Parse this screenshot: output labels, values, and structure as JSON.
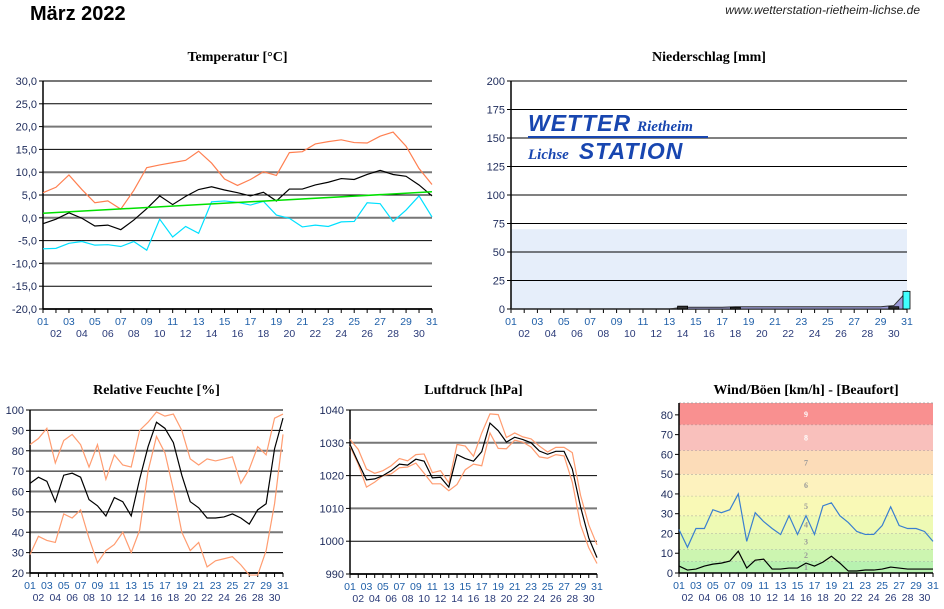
{
  "header": {
    "title": "März 2022",
    "url": "www.wetterstation-rietheim-lichse.de"
  },
  "logo": {
    "word1": "WETTER",
    "word2": "Rietheim",
    "word3": "Lichse",
    "word4": "STATION"
  },
  "colors": {
    "max": "#ff7f50",
    "min": "#00e0ff",
    "mean": "#000000",
    "trend": "#00e000",
    "gust": "#3a7fd0",
    "hum_range": "#ff9c70",
    "precip_area": "#9a9ad8",
    "precip_bar": "#40ffff"
  },
  "chart_data": [
    {
      "id": "temp",
      "type": "line",
      "title": "Temperatur [°C]",
      "ylim": [
        -20,
        30
      ],
      "yticks": [
        "-20,0",
        "-15,0",
        "-10,0",
        "-5,0",
        "0,0",
        "5,0",
        "10,0",
        "15,0",
        "20,0",
        "25,0",
        "30,0"
      ],
      "ytick_values": [
        -20,
        -15,
        -10,
        -5,
        0,
        5,
        10,
        15,
        20,
        25,
        30
      ],
      "series": [
        {
          "name": "max",
          "color": "#ff7f50",
          "values": [
            5.5,
            6.7,
            9.4,
            6.2,
            3.3,
            3.7,
            1.9,
            6.0,
            11.0,
            11.6,
            12.1,
            12.6,
            14.6,
            12.0,
            8.5,
            7.1,
            8.4,
            10.1,
            9.3,
            14.3,
            14.5,
            16.2,
            16.7,
            17.1,
            16.5,
            16.4,
            17.9,
            18.8,
            15.7,
            10.8,
            7.3
          ]
        },
        {
          "name": "mean",
          "color": "#000000",
          "values": [
            -1.3,
            -0.3,
            1.1,
            -0.1,
            -1.8,
            -1.6,
            -2.6,
            -0.5,
            2.0,
            4.8,
            2.9,
            4.7,
            6.2,
            6.8,
            6.1,
            5.5,
            4.8,
            5.6,
            3.7,
            6.3,
            6.3,
            7.2,
            7.8,
            8.6,
            8.4,
            9.5,
            10.4,
            9.5,
            9.1,
            7.2,
            4.8
          ]
        },
        {
          "name": "min",
          "color": "#00e0ff",
          "values": [
            -6.8,
            -6.7,
            -5.6,
            -5.2,
            -6.0,
            -5.9,
            -6.3,
            -5.2,
            -7.1,
            -0.3,
            -4.2,
            -1.9,
            -3.4,
            3.5,
            3.7,
            3.4,
            2.8,
            3.6,
            0.6,
            -0.1,
            -2.0,
            -1.6,
            -1.9,
            -0.9,
            -0.8,
            3.3,
            3.1,
            -0.8,
            1.7,
            4.8,
            0.2
          ]
        },
        {
          "name": "trend",
          "color": "#00e000",
          "values": [
            1.0,
            5.7
          ],
          "linear": true
        }
      ]
    },
    {
      "id": "precip",
      "type": "area",
      "title": "Niederschlag [mm]",
      "ylim": [
        0,
        200
      ],
      "yticks": [
        "0",
        "25",
        "50",
        "75",
        "100",
        "125",
        "150",
        "175",
        "200"
      ],
      "ytick_values": [
        0,
        25,
        50,
        75,
        100,
        125,
        150,
        175,
        200
      ],
      "normal_band": 70,
      "daily": [
        0,
        0,
        0,
        0,
        0,
        0,
        0,
        0,
        0,
        0,
        0,
        0,
        0,
        1.5,
        0,
        0,
        0,
        0.5,
        0,
        0,
        0,
        0,
        0,
        0,
        0,
        0,
        0,
        0,
        0,
        1,
        12.5
      ],
      "cumulative": [
        0,
        0,
        0,
        0,
        0,
        0,
        0,
        0,
        0,
        0,
        0,
        0,
        0,
        1.5,
        1.5,
        1.5,
        1.5,
        2,
        2,
        2,
        2,
        2,
        2,
        2,
        2,
        2,
        2,
        2,
        2,
        3,
        15.5
      ]
    },
    {
      "id": "hum",
      "type": "line",
      "title": "Relative Feuchte [%]",
      "ylim": [
        20,
        100
      ],
      "yticks": [
        "20",
        "30",
        "40",
        "50",
        "60",
        "70",
        "80",
        "90",
        "100"
      ],
      "ytick_values": [
        20,
        30,
        40,
        50,
        60,
        70,
        80,
        90,
        100
      ],
      "series": [
        {
          "name": "max",
          "color": "#ff9c70",
          "values": [
            83,
            86,
            91,
            74,
            85,
            88,
            83,
            72,
            83,
            66,
            78,
            73,
            72,
            90,
            94,
            99,
            97,
            98,
            90,
            76,
            73,
            76,
            75,
            76,
            77,
            64,
            71,
            82,
            78,
            96,
            98
          ]
        },
        {
          "name": "min",
          "color": "#ff9c70",
          "values": [
            29,
            38,
            36,
            35,
            49,
            47,
            51,
            37,
            25,
            31,
            34,
            40,
            30,
            41,
            70,
            87,
            79,
            61,
            40,
            31,
            35,
            23,
            26,
            27,
            28,
            24,
            19,
            19,
            31,
            54,
            88
          ]
        },
        {
          "name": "mean",
          "color": "#000000",
          "values": [
            64,
            67,
            65,
            55,
            68,
            69,
            67,
            56,
            53,
            48,
            57,
            55,
            48,
            66,
            82,
            94,
            91,
            84,
            68,
            55,
            52,
            47,
            47,
            47.5,
            49,
            47,
            44,
            51,
            54,
            81,
            96
          ]
        }
      ]
    },
    {
      "id": "press",
      "type": "line",
      "title": "Luftdruck [hPa]",
      "ylim": [
        990,
        1040
      ],
      "yticks": [
        "990",
        "1000",
        "1010",
        "1020",
        "1030",
        "1040"
      ],
      "ytick_values": [
        990,
        1000,
        1010,
        1020,
        1030,
        1040
      ],
      "series": [
        {
          "name": "max",
          "color": "#ff9c70",
          "values": [
            1031,
            1028,
            1022,
            1020.7,
            1021.5,
            1023,
            1025.2,
            1024.5,
            1026.4,
            1026.6,
            1020.9,
            1021.5,
            1017.8,
            1029.5,
            1029,
            1025.9,
            1033,
            1038.8,
            1038.6,
            1031.6,
            1033,
            1031.8,
            1031.2,
            1029,
            1027.2,
            1028.6,
            1028.6,
            1027,
            1014,
            1005,
            998.9
          ]
        },
        {
          "name": "min",
          "color": "#ff9c70",
          "values": [
            1029,
            1023.5,
            1016.5,
            1018,
            1020,
            1020.5,
            1022.4,
            1022.6,
            1023.8,
            1020.7,
            1017.5,
            1017.5,
            1015.4,
            1017.3,
            1021.8,
            1023.5,
            1023,
            1033,
            1028.3,
            1028.2,
            1030.8,
            1030.2,
            1028.7,
            1025.7,
            1025.3,
            1026.4,
            1026,
            1018,
            1005,
            998,
            993.2
          ]
        },
        {
          "name": "mean",
          "color": "#000000",
          "values": [
            1029.5,
            1024,
            1018.7,
            1019,
            1020,
            1021.5,
            1023.5,
            1023.2,
            1025,
            1024.4,
            1019.3,
            1019.5,
            1016.5,
            1026.4,
            1025.2,
            1024.4,
            1027.3,
            1036,
            1033.7,
            1030.2,
            1031.7,
            1031,
            1030,
            1027.5,
            1026.5,
            1027.4,
            1027.4,
            1022,
            1010.5,
            1001,
            995
          ]
        }
      ]
    },
    {
      "id": "wind",
      "type": "line",
      "title": "Wind/Böen [km/h] - [Beaufort]",
      "ylim": [
        0,
        86
      ],
      "yticks": [
        "0",
        "10",
        "20",
        "30",
        "40",
        "50",
        "60",
        "70",
        "80"
      ],
      "ytick_values": [
        0,
        10,
        20,
        30,
        40,
        50,
        60,
        70,
        80
      ],
      "beaufort_bands": [
        {
          "label": "1",
          "from": 0,
          "to": 6,
          "color": "#b8f2b0"
        },
        {
          "label": "2",
          "from": 6,
          "to": 12,
          "color": "#ccf5b0"
        },
        {
          "label": "3",
          "from": 12,
          "to": 20,
          "color": "#e0f8b2"
        },
        {
          "label": "4",
          "from": 20,
          "to": 29,
          "color": "#eefab4"
        },
        {
          "label": "5",
          "from": 29,
          "to": 39,
          "color": "#f9f9b6"
        },
        {
          "label": "6",
          "from": 39,
          "to": 50,
          "color": "#fdf2be"
        },
        {
          "label": "7",
          "from": 50,
          "to": 62,
          "color": "#fcdcb8"
        },
        {
          "label": "8",
          "from": 62,
          "to": 75,
          "color": "#f9c0bc"
        },
        {
          "label": "9",
          "from": 75,
          "to": 86,
          "color": "#f99090"
        }
      ],
      "series": [
        {
          "name": "gust",
          "color": "#3a7fd0",
          "values": [
            22,
            13,
            22.5,
            22.5,
            32,
            30.5,
            32,
            40,
            16,
            30.5,
            26,
            22.5,
            19.5,
            29,
            19.5,
            29,
            19.5,
            34,
            35.5,
            29,
            25.5,
            21,
            19.5,
            19.5,
            24,
            33.5,
            24,
            22.5,
            22.5,
            21,
            16
          ]
        },
        {
          "name": "mean",
          "color": "#000000",
          "values": [
            3.5,
            1.5,
            2,
            3.5,
            4.5,
            5,
            6,
            11,
            2.5,
            6.5,
            7,
            2,
            2,
            2.5,
            2.5,
            5,
            3.5,
            5.5,
            8.5,
            5,
            1,
            1,
            1.5,
            1.5,
            2,
            3,
            2.5,
            2,
            2,
            2,
            2
          ]
        }
      ]
    }
  ],
  "days": [
    "01",
    "02",
    "03",
    "04",
    "05",
    "06",
    "07",
    "08",
    "09",
    "10",
    "11",
    "12",
    "13",
    "14",
    "15",
    "16",
    "17",
    "18",
    "19",
    "20",
    "21",
    "22",
    "23",
    "24",
    "25",
    "26",
    "27",
    "28",
    "29",
    "30",
    "31"
  ]
}
